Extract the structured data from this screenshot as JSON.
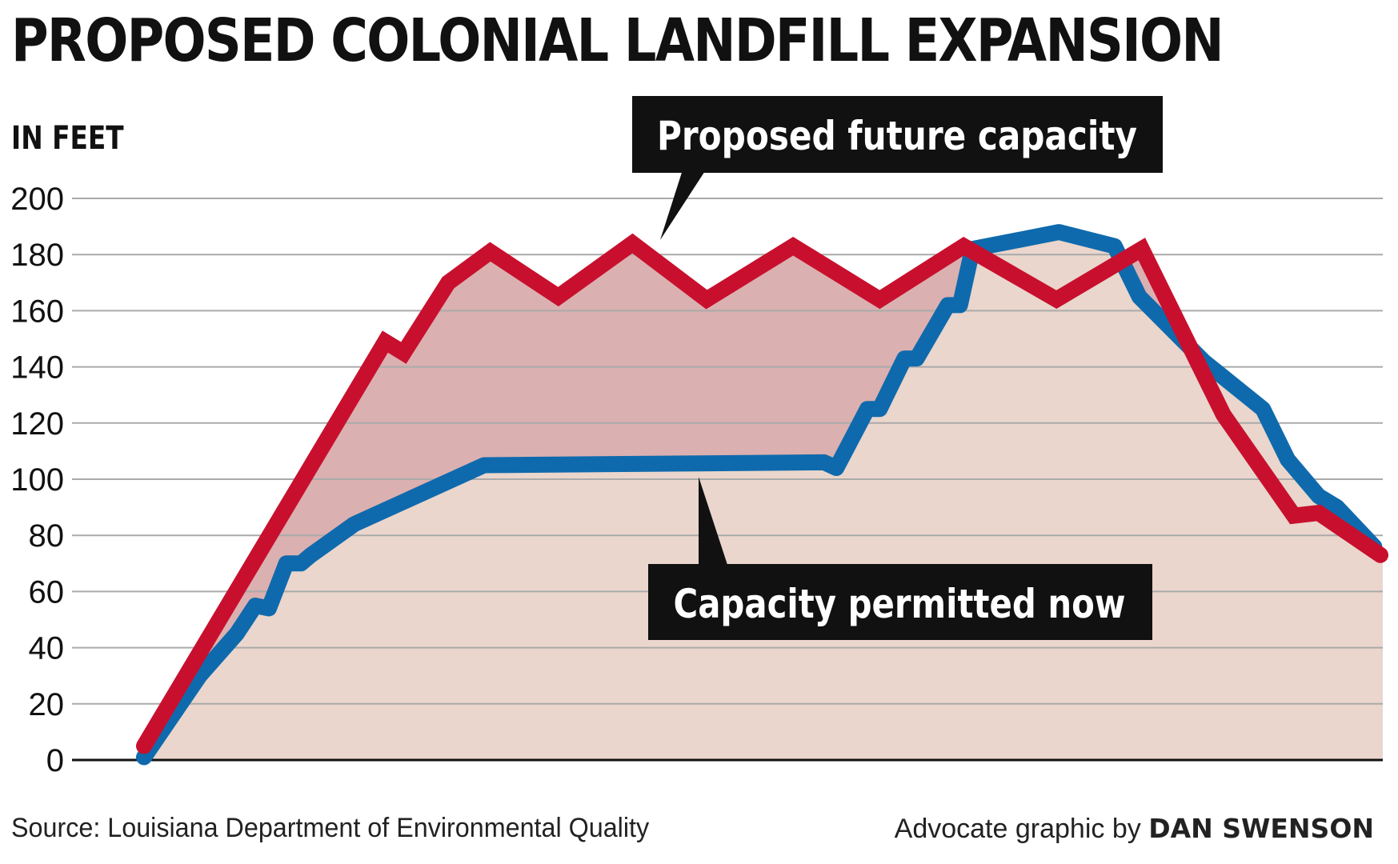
{
  "header": {
    "title": "PROPOSED COLONIAL LANDFILL EXPANSION",
    "unit_label": "IN FEET"
  },
  "footer": {
    "source": "Source: Louisiana Department of Environmental Quality",
    "credit_prefix": "Advocate graphic by",
    "credit_name": "DAN SWENSON"
  },
  "colors": {
    "proposed_line": "#c8102e",
    "proposed_fill": "#dbb0b0",
    "permitted_line": "#0f6aad",
    "permitted_fill": "#ead6cc",
    "gridline": "#aaaaaa",
    "callout_bg": "#111111"
  },
  "chart_data": {
    "type": "area",
    "title": "PROPOSED COLONIAL LANDFILL EXPANSION",
    "ylabel": "IN FEET",
    "xlabel": "",
    "ylim": [
      0,
      200
    ],
    "xlim": [
      0,
      100
    ],
    "yticks": [
      0,
      20,
      40,
      60,
      80,
      100,
      120,
      140,
      160,
      180,
      200
    ],
    "grid": true,
    "x_axis_labels": "none",
    "series": [
      {
        "name": "Proposed future capacity",
        "color": "#c8102e",
        "x": [
          0,
          19.5,
          21.0,
          24.6,
          28.0,
          33.5,
          39.5,
          45.5,
          52.5,
          59.5,
          66.3,
          73.8,
          80.7,
          87.3,
          93.0,
          95.0,
          100.0
        ],
        "y": [
          5,
          149,
          145,
          170,
          181,
          165,
          184,
          164,
          183,
          164,
          183,
          164,
          182,
          123,
          87,
          88,
          73
        ]
      },
      {
        "name": "Capacity permitted now",
        "color": "#0f6aad",
        "x": [
          0,
          4.5,
          7.5,
          9.0,
          10.1,
          11.5,
          12.7,
          13.5,
          17.0,
          27.5,
          55.0,
          56.0,
          58.5,
          59.5,
          61.5,
          62.5,
          65.0,
          66.0,
          67.0,
          74.0,
          78.5,
          80.5,
          85.7,
          90.5,
          92.5,
          95.0,
          96.5,
          99.5
        ],
        "y": [
          1,
          30,
          45,
          55,
          54,
          70,
          70,
          73,
          84,
          105,
          106,
          104,
          125,
          125,
          143,
          143,
          162,
          162,
          182,
          188,
          183,
          165,
          142,
          125,
          107,
          94,
          90,
          76
        ]
      }
    ],
    "annotations": [
      {
        "text": "Proposed future capacity",
        "series": "Proposed future capacity"
      },
      {
        "text": "Capacity permitted now",
        "series": "Capacity permitted now"
      }
    ]
  }
}
